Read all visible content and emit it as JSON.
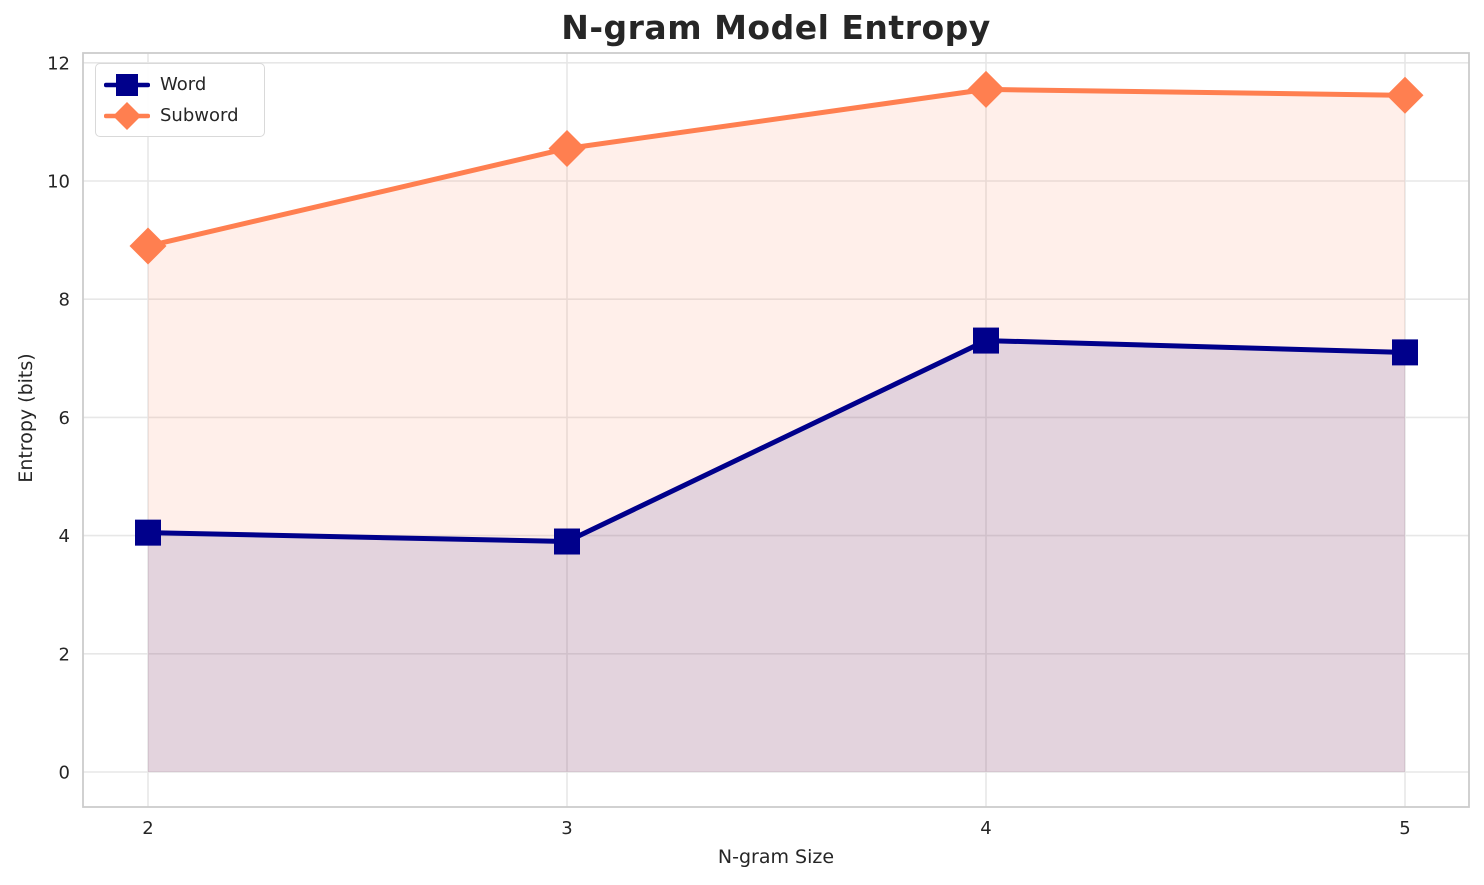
{
  "chart_data": {
    "type": "line",
    "title": "N-gram Model Entropy",
    "xlabel": "N-gram Size",
    "ylabel": "Entropy (bits)",
    "x": [
      2,
      3,
      4,
      5
    ],
    "xtick_labels": [
      "2",
      "3",
      "4",
      "5"
    ],
    "yticks": [
      0,
      2,
      4,
      6,
      8,
      10,
      12
    ],
    "ylim": [
      0,
      12
    ],
    "grid": true,
    "legend_position": "upper-left",
    "series": [
      {
        "name": "Word",
        "color": "#00008B",
        "marker": "square",
        "line_width": 5,
        "fill_to_zero": true,
        "fill_opacity": 0.12,
        "values": [
          4.05,
          3.9,
          7.3,
          7.1
        ]
      },
      {
        "name": "Subword",
        "color": "#FF7F50",
        "marker": "diamond",
        "line_width": 5,
        "fill_to_zero": true,
        "fill_opacity": 0.12,
        "values": [
          8.9,
          10.55,
          11.55,
          11.45
        ]
      }
    ]
  },
  "styles": {
    "background": "#FFFFFF",
    "grid_color": "#E7E7E7",
    "spine_color": "#CCCCCC",
    "text_color": "#262626",
    "legend_border_color": "#D9D9D9"
  }
}
